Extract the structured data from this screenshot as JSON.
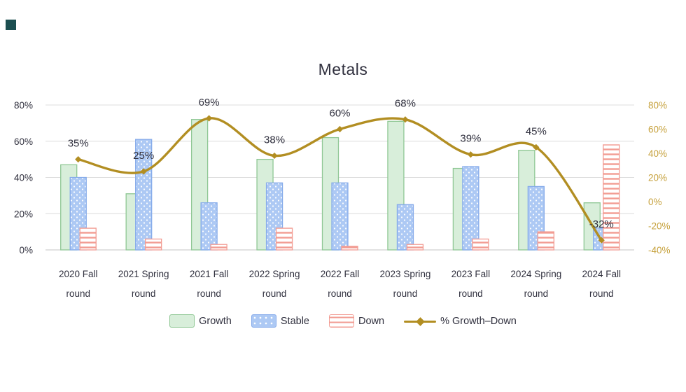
{
  "accent": {
    "square_color": "#1B4E50"
  },
  "chart_data": {
    "type": "bar",
    "subtype": "overlapping grouped bars with secondary-axis line",
    "title": "Metals",
    "categories": [
      "2020 Fall",
      "2021 Spring",
      "2021 Fall",
      "2022 Spring",
      "2022 Fall",
      "2023 Spring",
      "2023 Fall",
      "2024 Spring",
      "2024 Fall"
    ],
    "category_second_line": "round",
    "series": [
      {
        "name": "Growth",
        "type": "bar",
        "pattern": "solid",
        "fill": "#D8EEDA",
        "stroke": "#8FC794",
        "values": [
          47,
          31,
          72,
          50,
          62,
          71,
          45,
          55,
          26
        ]
      },
      {
        "name": "Stable",
        "type": "bar",
        "pattern": "dots",
        "fill": "#ADC9F4",
        "stroke": "#86ABEA",
        "values": [
          40,
          61,
          26,
          37,
          37,
          25,
          46,
          35,
          12
        ]
      },
      {
        "name": "Down",
        "type": "bar",
        "pattern": "hstripes",
        "fill": "#FFFFFF",
        "stroke": "#F29C93",
        "values": [
          12,
          6,
          3,
          12,
          2,
          3,
          6,
          10,
          58
        ]
      },
      {
        "name": "% Growth–Down",
        "type": "line",
        "axis": "right",
        "color": "#B28E22",
        "values": [
          35,
          25,
          69,
          38,
          60,
          68,
          39,
          45,
          -32
        ],
        "point_labels": [
          "35%",
          "25%",
          "69%",
          "38%",
          "60%",
          "68%",
          "39%",
          "45%",
          "-32%"
        ]
      }
    ],
    "left_axis": {
      "min": 0,
      "max": 80,
      "ticks": [
        0,
        20,
        40,
        60,
        80
      ],
      "labels": [
        "0%",
        "20%",
        "40%",
        "60%",
        "80%"
      ],
      "color": "#30303E"
    },
    "right_axis": {
      "min": -40,
      "max": 80,
      "ticks": [
        -40,
        -20,
        0,
        20,
        40,
        60,
        80
      ],
      "labels": [
        "-40%",
        "-20%",
        "0%",
        "20%",
        "40%",
        "60%",
        "80%"
      ],
      "color": "#C6A13C"
    },
    "grid": true,
    "grid_color": "#DCDCDC",
    "axis_line_color": "#C4C4C4",
    "text_color": "#30303E",
    "legend_position": "bottom"
  }
}
